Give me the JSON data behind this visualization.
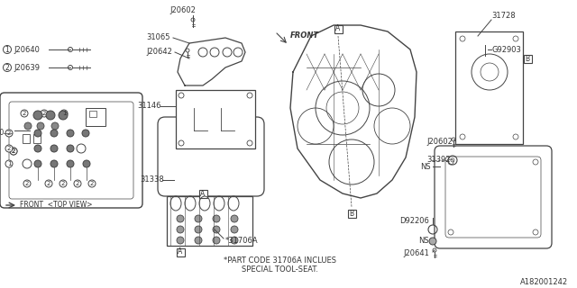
{
  "bg_color": "#ffffff",
  "line_color": "#444444",
  "text_color": "#333333",
  "footer_code": "A182001242",
  "notes": [
    "*PART CODE 31706A INCLUES",
    "SPECIAL TOOL-SEAT."
  ]
}
